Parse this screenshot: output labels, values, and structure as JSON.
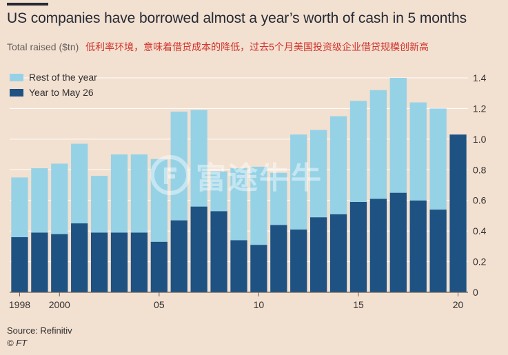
{
  "header": {
    "title": "US companies have borrowed almost a year’s worth of cash in 5 months",
    "subtitle": "Total raised ($tn)",
    "subtitle_note": "低利率环境，意味着借贷成本的降低，过去5个月美国投资级企业借贷规模创新高"
  },
  "footer": {
    "source": "Source: Refinitiv",
    "credit": "© FT"
  },
  "watermark": {
    "text": "富途牛牛",
    "icon": "futu-logo-icon"
  },
  "colors": {
    "background": "#f2e0d1",
    "rest_of_year": "#96d2e6",
    "year_to_may": "#1e5283",
    "title": "#262a33",
    "subtitle_note": "#d2342a",
    "gridline": "#ffffff",
    "axis": "#66605c"
  },
  "chart_data": {
    "type": "bar",
    "stacked": true,
    "title": "US companies have borrowed almost a year’s worth of cash in 5 months",
    "ylabel": "Total raised ($tn)",
    "ylim": [
      0,
      1.4
    ],
    "yticks": [
      0,
      0.2,
      0.4,
      0.6,
      0.8,
      1.0,
      1.2,
      1.4
    ],
    "ytick_labels": [
      "0",
      "0.2",
      "0.4",
      "0.6",
      "0.8",
      "1.0",
      "1.2",
      "1.4"
    ],
    "y_axis_position": "right",
    "grid": true,
    "legend_position": "top-left",
    "categories": [
      1998,
      1999,
      2000,
      2001,
      2002,
      2003,
      2004,
      2005,
      2006,
      2007,
      2008,
      2009,
      2010,
      2011,
      2012,
      2013,
      2014,
      2015,
      2016,
      2017,
      2018,
      2019,
      2020
    ],
    "xtick_labels": [
      {
        "year": 1998,
        "label": "1998"
      },
      {
        "year": 2000,
        "label": "2000"
      },
      {
        "year": 2005,
        "label": "05"
      },
      {
        "year": 2010,
        "label": "10"
      },
      {
        "year": 2015,
        "label": "15"
      },
      {
        "year": 2020,
        "label": "20"
      }
    ],
    "series": [
      {
        "name": "Year to May 26",
        "values": [
          0.36,
          0.39,
          0.38,
          0.45,
          0.39,
          0.39,
          0.39,
          0.33,
          0.47,
          0.56,
          0.53,
          0.34,
          0.31,
          0.44,
          0.41,
          0.49,
          0.51,
          0.59,
          0.61,
          0.65,
          0.6,
          0.54,
          1.03
        ]
      },
      {
        "name": "Rest of the year",
        "values": [
          0.39,
          0.42,
          0.46,
          0.52,
          0.37,
          0.51,
          0.51,
          0.54,
          0.71,
          0.63,
          0.26,
          0.47,
          0.51,
          0.34,
          0.62,
          0.57,
          0.64,
          0.66,
          0.71,
          0.75,
          0.64,
          0.66,
          0
        ]
      }
    ]
  }
}
